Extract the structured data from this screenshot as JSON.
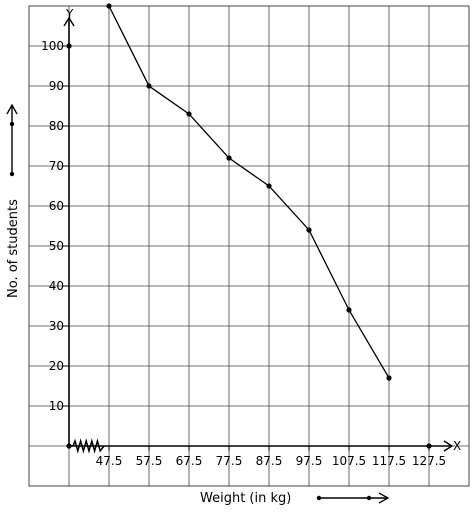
{
  "chart_data": {
    "type": "line",
    "x_axis_letter": "X",
    "y_axis_letter": "Y",
    "xlabel": "Weight (in kg)",
    "ylabel": "No. of students",
    "x_ticks": [
      "47.5",
      "57.5",
      "67.5",
      "77.5",
      "87.5",
      "97.5",
      "107.5",
      "117.5",
      "127.5"
    ],
    "y_ticks": [
      "10",
      "20",
      "30",
      "40",
      "50",
      "60",
      "70",
      "80",
      "90",
      "100"
    ],
    "grid": true,
    "series": [
      {
        "points": [
          {
            "x": 47.5,
            "y": 110
          },
          {
            "x": 57.5,
            "y": 90
          },
          {
            "x": 67.5,
            "y": 83
          },
          {
            "x": 77.5,
            "y": 72
          },
          {
            "x": 87.5,
            "y": 65
          },
          {
            "x": 97.5,
            "y": 54
          },
          {
            "x": 107.5,
            "y": 34
          },
          {
            "x": 117.5,
            "y": 17
          }
        ]
      }
    ],
    "axis_break": "zig-zag between 37.5 and 47.5",
    "color": "#000000",
    "grid_color": "#444444"
  }
}
